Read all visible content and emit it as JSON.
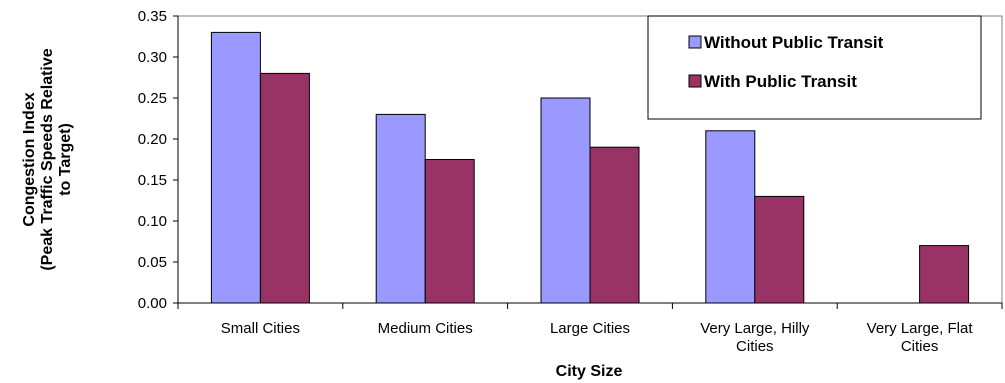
{
  "chart_data": {
    "type": "bar",
    "categories": [
      [
        "Small Cities"
      ],
      [
        "Medium Cities"
      ],
      [
        "Large Cities"
      ],
      [
        "Very Large, Hilly",
        "Cities"
      ],
      [
        "Very Large, Flat",
        "Cities"
      ]
    ],
    "series": [
      {
        "name": "Without Public Transit",
        "color": "#9999ff",
        "values": [
          0.33,
          0.23,
          0.25,
          0.21,
          null
        ]
      },
      {
        "name": "With Public Transit",
        "color": "#993366",
        "values": [
          0.28,
          0.175,
          0.19,
          0.13,
          0.07
        ]
      }
    ],
    "xlabel": "City Size",
    "ylabel": [
      "Congestion Index",
      "(Peak Traffic Speeds Relative",
      "to Target)"
    ],
    "ylim": [
      0,
      0.35
    ],
    "yticks": [
      "0.00",
      "0.05",
      "0.10",
      "0.15",
      "0.20",
      "0.25",
      "0.30",
      "0.35"
    ],
    "grid": false,
    "legend_position": "top-right"
  }
}
